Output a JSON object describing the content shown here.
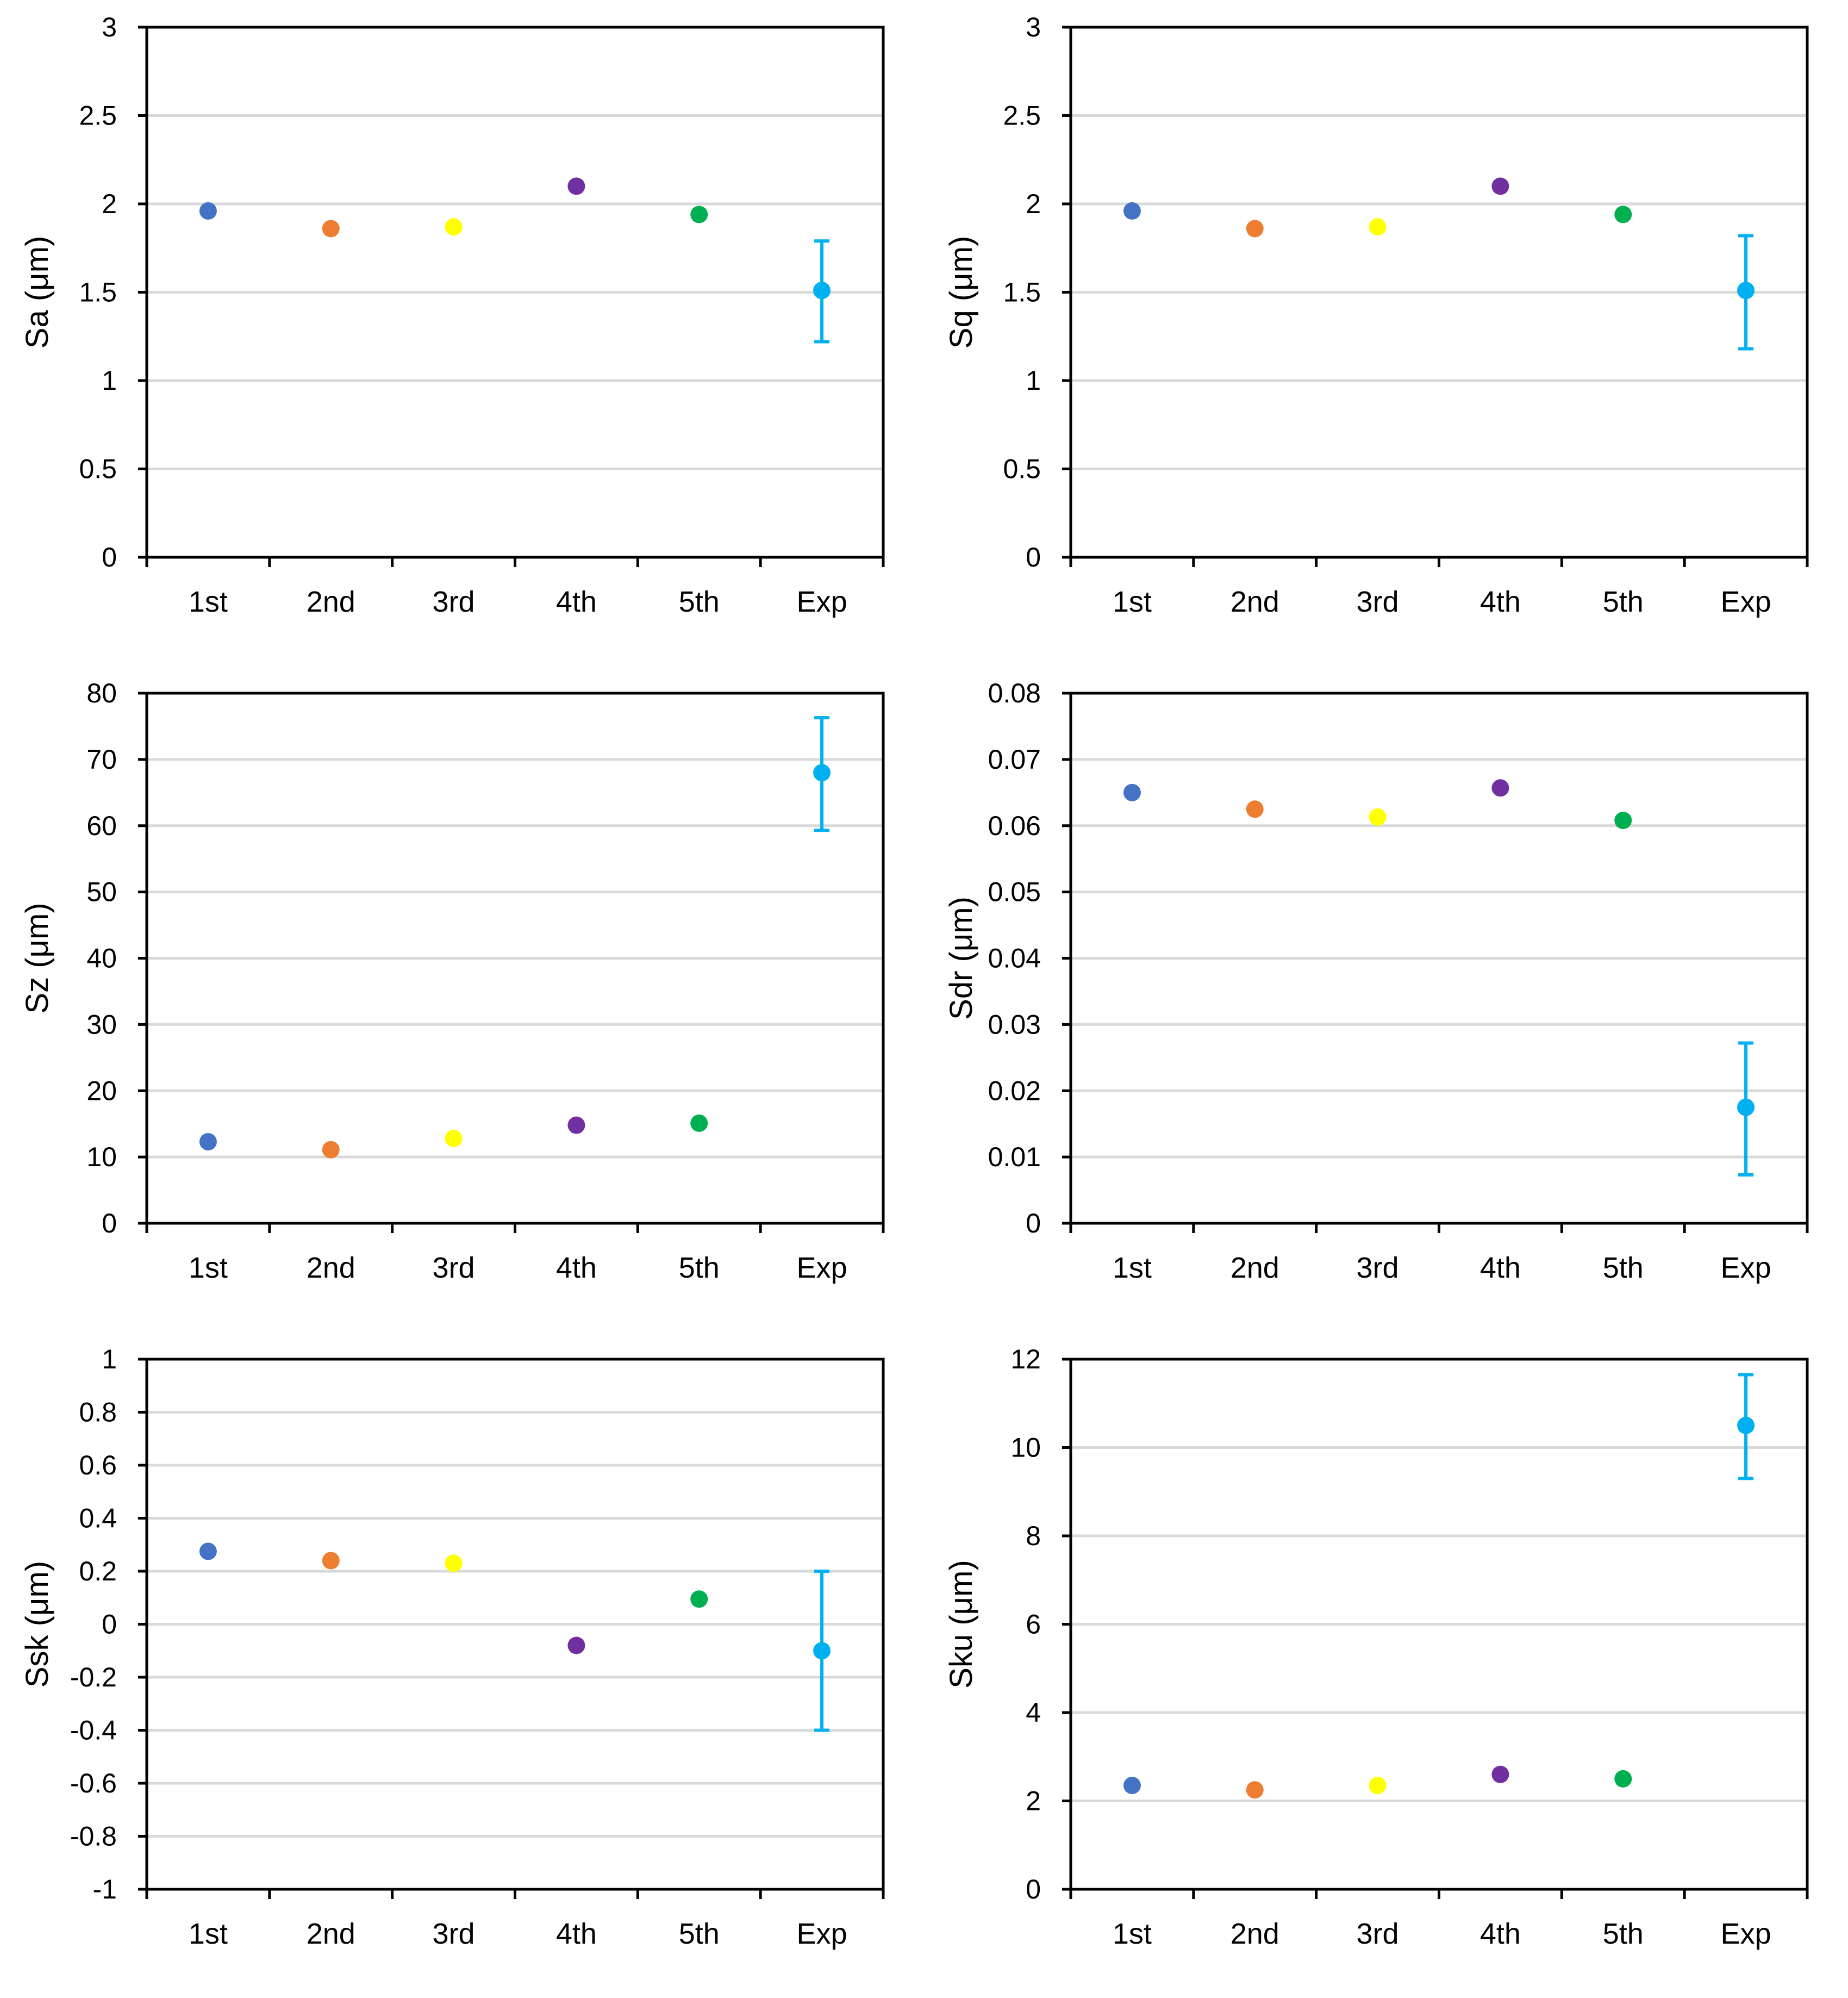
{
  "figure": {
    "categories": [
      "1st",
      "2nd",
      "3rd",
      "4th",
      "5th",
      "Exp"
    ]
  },
  "chart_data": [
    {
      "type": "scatter",
      "ylabel": "Sa (μm)",
      "ylim": [
        0,
        3
      ],
      "yticks": [
        "0",
        "0.5",
        "1",
        "1.5",
        "2",
        "2.5",
        "3"
      ],
      "tick_values": [
        0,
        0.5,
        1,
        1.5,
        2,
        2.5,
        3
      ],
      "categories": [
        "1st",
        "2nd",
        "3rd",
        "4th",
        "5th",
        "Exp"
      ],
      "values": [
        1.96,
        1.86,
        1.87,
        2.1,
        1.94,
        1.51
      ],
      "error_bars": [
        null,
        null,
        null,
        null,
        null,
        [
          1.22,
          1.79
        ]
      ],
      "grid": "horizontal",
      "legend": "none"
    },
    {
      "type": "scatter",
      "ylabel": "Sq (μm)",
      "ylim": [
        0,
        3
      ],
      "yticks": [
        "0",
        "0.5",
        "1",
        "1.5",
        "2",
        "2.5",
        "3"
      ],
      "tick_values": [
        0,
        0.5,
        1,
        1.5,
        2,
        2.5,
        3
      ],
      "categories": [
        "1st",
        "2nd",
        "3rd",
        "4th",
        "5th",
        "Exp"
      ],
      "values": [
        1.96,
        1.86,
        1.87,
        2.1,
        1.94,
        1.51
      ],
      "error_bars": [
        null,
        null,
        null,
        null,
        null,
        [
          1.18,
          1.82
        ]
      ],
      "grid": "horizontal",
      "legend": "none"
    },
    {
      "type": "scatter",
      "ylabel": "Sz (μm)",
      "ylim": [
        0,
        80
      ],
      "yticks": [
        "0",
        "10",
        "20",
        "30",
        "40",
        "50",
        "60",
        "70",
        "80"
      ],
      "tick_values": [
        0,
        10,
        20,
        30,
        40,
        50,
        60,
        70,
        80
      ],
      "categories": [
        "1st",
        "2nd",
        "3rd",
        "4th",
        "5th",
        "Exp"
      ],
      "values": [
        12.3,
        11.1,
        12.8,
        14.8,
        15.1,
        68.0
      ],
      "error_bars": [
        null,
        null,
        null,
        null,
        null,
        [
          59.3,
          76.3
        ]
      ],
      "grid": "horizontal",
      "legend": "none"
    },
    {
      "type": "scatter",
      "ylabel": "Sdr (μm)",
      "ylim": [
        0,
        0.08
      ],
      "yticks": [
        "0",
        "0.01",
        "0.02",
        "0.03",
        "0.04",
        "0.05",
        "0.06",
        "0.07",
        "0.08"
      ],
      "tick_values": [
        0,
        0.01,
        0.02,
        0.03,
        0.04,
        0.05,
        0.06,
        0.07,
        0.08
      ],
      "categories": [
        "1st",
        "2nd",
        "3rd",
        "4th",
        "5th",
        "Exp"
      ],
      "values": [
        0.065,
        0.0625,
        0.0613,
        0.0657,
        0.0608,
        0.0175
      ],
      "error_bars": [
        null,
        null,
        null,
        null,
        null,
        [
          0.0073,
          0.0272
        ]
      ],
      "grid": "horizontal",
      "legend": "none"
    },
    {
      "type": "scatter",
      "ylabel": "Ssk (μm)",
      "ylim": [
        -1,
        1
      ],
      "yticks": [
        "-1",
        "-0.8",
        "-0.6",
        "-0.4",
        "-0.2",
        "0",
        "0.2",
        "0.4",
        "0.6",
        "0.8",
        "1"
      ],
      "tick_values": [
        -1,
        -0.8,
        -0.6,
        -0.4,
        -0.2,
        0,
        0.2,
        0.4,
        0.6,
        0.8,
        1
      ],
      "categories": [
        "1st",
        "2nd",
        "3rd",
        "4th",
        "5th",
        "Exp"
      ],
      "values": [
        0.275,
        0.24,
        0.23,
        -0.08,
        0.095,
        -0.1
      ],
      "error_bars": [
        null,
        null,
        null,
        null,
        null,
        [
          -0.4,
          0.2
        ]
      ],
      "grid": "horizontal",
      "legend": "none"
    },
    {
      "type": "scatter",
      "ylabel": "Sku (μm)",
      "ylim": [
        0,
        12
      ],
      "yticks": [
        "0",
        "2",
        "4",
        "6",
        "8",
        "10",
        "12"
      ],
      "tick_values": [
        0,
        2,
        4,
        6,
        8,
        10,
        12
      ],
      "categories": [
        "1st",
        "2nd",
        "3rd",
        "4th",
        "5th",
        "Exp"
      ],
      "values": [
        2.35,
        2.25,
        2.35,
        2.6,
        2.5,
        10.5
      ],
      "error_bars": [
        null,
        null,
        null,
        null,
        null,
        [
          9.3,
          11.65
        ]
      ],
      "grid": "horizontal",
      "legend": "none"
    }
  ],
  "colors": {
    "series": [
      "#4472C4",
      "#ED7D31",
      "#FFFF00",
      "#7030A0",
      "#00B050",
      "#00B0F0"
    ],
    "grid": "#d9d9d9",
    "axis": "#000000"
  }
}
